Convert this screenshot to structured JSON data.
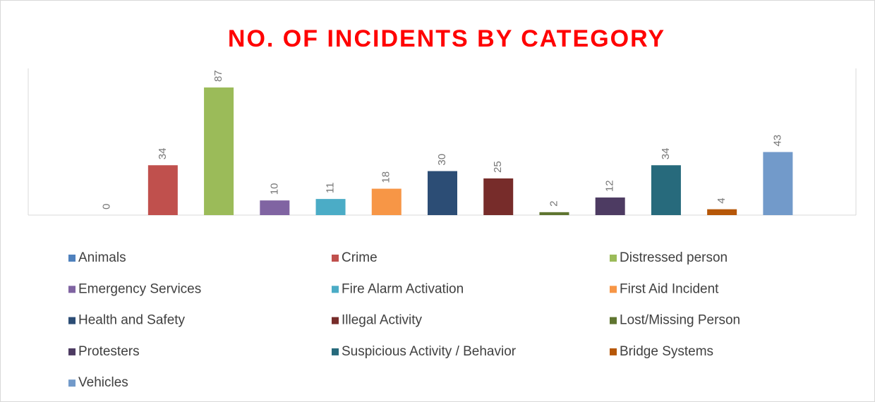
{
  "chart_data": {
    "type": "bar",
    "title": "NO. OF INCIDENTS BY CATEGORY",
    "categories": [
      "Animals",
      "Crime",
      "Distressed person",
      "Emergency Services",
      "Fire Alarm Activation",
      "First Aid Incident",
      "Health and Safety",
      "Illegal Activity",
      "Lost/Missing Person",
      "Protesters",
      "Suspicious Activity / Behavior",
      "Bridge Systems",
      "Vehicles"
    ],
    "values": [
      0,
      34,
      87,
      10,
      11,
      18,
      30,
      25,
      2,
      12,
      34,
      4,
      43
    ],
    "colors": [
      "#4f81bd",
      "#c0504d",
      "#9bbb59",
      "#8064a2",
      "#4bacc6",
      "#f79646",
      "#2c4d75",
      "#772c2a",
      "#5f7530",
      "#4d3b62",
      "#276a7c",
      "#b65708",
      "#729aca"
    ],
    "ylim": [
      0,
      100
    ],
    "legend": "bottom"
  }
}
